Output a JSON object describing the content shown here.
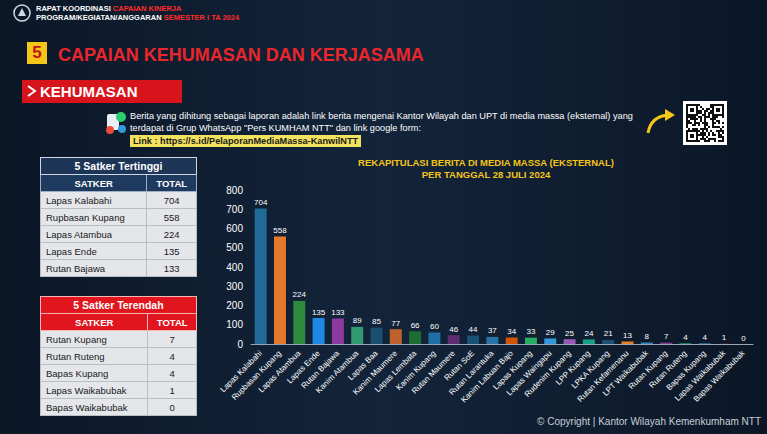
{
  "header": {
    "line1": [
      "RAPAT KOORDINASI",
      "CAPAIAN KINERJA"
    ],
    "line2": [
      "PROGRAM/KEGIATAN/ANGGARAN",
      "SEMESTER I TA 2024"
    ]
  },
  "section": {
    "number": "5",
    "title": "CAPAIAN KEHUMASAN DAN KERJASAMA"
  },
  "subsection": "KEHUMASAN",
  "note": "Berita yang dihitung sebagai laporan adalah link berita mengenai Kantor Wilayah dan UPT di media massa (eksternal) yang terdapat di Grup WhatsApp \"Pers KUMHAM NTT\" dan link google form:",
  "link": "Link : https://s.id/PelaporanMediaMassa-KanwilNTT",
  "tables": [
    {
      "title": "5 Satker Tertinggi",
      "columns": [
        "SATKER",
        "TOTAL"
      ],
      "rows": [
        [
          "Lapas Kalabahi",
          704
        ],
        [
          "Rupbasan Kupang",
          558
        ],
        [
          "Lapas Atambua",
          224
        ],
        [
          "Lapas Ende",
          135
        ],
        [
          "Rutan Bajawa",
          133
        ]
      ]
    },
    {
      "title": "5 Satker Terendah",
      "columns": [
        "SATKER",
        "TOTAL"
      ],
      "rows": [
        [
          "Rutan Kupang",
          7
        ],
        [
          "Rutan Ruteng",
          4
        ],
        [
          "Bapas Kupang",
          4
        ],
        [
          "Lapas Waikabubak",
          1
        ],
        [
          "Bapas Waikabubak",
          0
        ]
      ]
    }
  ],
  "chart_data": {
    "type": "bar",
    "title": "REKAPITULASI BERITA DI MEDIA MASSA (EKSTERNAL)",
    "subtitle": "PER TANGGAL 28 JULI 2024",
    "categories": [
      "Lapas Kalabahi",
      "Rupbasan Kupang",
      "Lapas Atambua",
      "Lapas Ende",
      "Rutan Bajawa",
      "Kanim Atambua",
      "Lapas Baa",
      "Kanim Maumere",
      "Lapas Lembata",
      "Kanim Kupang",
      "Rutan Maumere",
      "Rutan SoE",
      "Rutan Larantuka",
      "Kanim Labuan Bajo",
      "Lapas Kupang",
      "Lapas Waingapu",
      "Rudenim Kupang",
      "LPP Kupang",
      "LPKA Kupang",
      "Rutan Kefamenanu",
      "LPT Waikabubak",
      "Rutan Kupang",
      "Rutan Ruteng",
      "Bapas Kupang",
      "Lapas Waikabubak",
      "Bapas Waikabubak"
    ],
    "values": [
      704,
      558,
      224,
      135,
      133,
      89,
      85,
      77,
      66,
      60,
      46,
      44,
      37,
      34,
      33,
      29,
      25,
      24,
      21,
      13,
      8,
      7,
      4,
      4,
      1,
      0
    ],
    "colors": [
      "#1f6a96",
      "#e8772e",
      "#2e8b3e",
      "#1e88e5",
      "#8e3a9e",
      "#2e9a6e",
      "#1b4f72",
      "#c0622d",
      "#1e6e34",
      "#1d6fa5",
      "#5b2c6f",
      "#1a5276",
      "#2874a6",
      "#d35400",
      "#27ae60",
      "#3498db",
      "#9b59b6",
      "#16a085",
      "#1f4e79",
      "#e67e22",
      "#2e86c1",
      "#7d3c98",
      "#148f77",
      "#2471a3",
      "#a04000",
      "#1e8449"
    ],
    "ylim": [
      0,
      800
    ],
    "yticks": [
      0,
      100,
      200,
      300,
      400,
      500,
      600,
      700,
      800
    ],
    "grid": false,
    "data_labels": true
  },
  "footer": "© Copyright | Kantor Wilayah Kemenkumham NTT"
}
